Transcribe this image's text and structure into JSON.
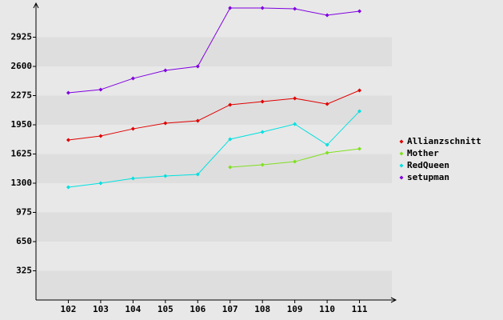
{
  "chart_data": {
    "type": "line",
    "categories": [
      "102",
      "103",
      "104",
      "105",
      "106",
      "107",
      "108",
      "109",
      "110",
      "111"
    ],
    "series": [
      {
        "name": "Allianzschnitt",
        "color": "#e00000",
        "values": [
          1781,
          1825,
          1905,
          1968,
          1994,
          2173,
          2208,
          2244,
          2181,
          2333
        ]
      },
      {
        "name": "Mother",
        "color": "#80e020",
        "values": [
          null,
          null,
          null,
          null,
          null,
          1478,
          1505,
          1540,
          1638,
          1683
        ]
      },
      {
        "name": "RedQueen",
        "color": "#00e0e0",
        "values": [
          1255,
          1300,
          1353,
          1380,
          1398,
          1790,
          1870,
          1958,
          1727,
          2101
        ]
      },
      {
        "name": "setupman",
        "color": "#8000e0",
        "values": [
          2306,
          2342,
          2466,
          2555,
          2600,
          3250,
          3250,
          3241,
          3170,
          3214
        ]
      }
    ],
    "ylim": [
      0,
      3250
    ],
    "yticks": [
      325,
      650,
      975,
      1300,
      1625,
      1950,
      2275,
      2600,
      2925
    ],
    "grid": true,
    "legend": "right"
  }
}
